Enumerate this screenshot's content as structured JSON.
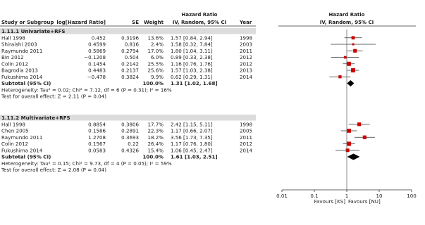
{
  "header": {
    "study": "Study or Subgroup",
    "loghr": "log[Hazard Ratio]",
    "se": "SE",
    "weight": "Weight",
    "hr_title": "Hazard Ratio",
    "hr_method": "IV, Random, 95% CI",
    "year": "Year",
    "plot_title": "Hazard Ratio",
    "plot_method": "IV, Random, 95% CI"
  },
  "chart_data": {
    "type": "forest",
    "x_scale": "log",
    "x_ticks": [
      "0.01",
      "0.1",
      "1",
      "10",
      "100"
    ],
    "x_tick_values": [
      0.01,
      0.1,
      1,
      10,
      100
    ],
    "xlabel_left": "Favours [KS]",
    "xlabel_right": "Favours [NU]",
    "marker_color": "#cc0000",
    "diamond_color": "#000000",
    "groups": [
      {
        "title": "1.11.1 Univariate+RFS",
        "studies": [
          {
            "name": "Hall 1998",
            "loghr": "0.452",
            "se": "0.3196",
            "weight": "13.6%",
            "ci_text": "1.57 [0.84, 2.94]",
            "year": "1998",
            "hr": 1.57,
            "lo": 0.84,
            "hi": 2.94,
            "w": 13.6
          },
          {
            "name": "Shiraishi 2003",
            "loghr": "0.4599",
            "se": "0.816",
            "weight": "2.4%",
            "ci_text": "1.58 [0.32, 7.84]",
            "year": "2003",
            "hr": 1.58,
            "lo": 0.32,
            "hi": 7.84,
            "w": 2.4
          },
          {
            "name": "Raymundo 2011",
            "loghr": "0.5869",
            "se": "0.2794",
            "weight": "17.0%",
            "ci_text": "1.80 [1.04, 3.11]",
            "year": "2011",
            "hr": 1.8,
            "lo": 1.04,
            "hi": 3.11,
            "w": 17.0
          },
          {
            "name": "Bin 2012",
            "loghr": "−0.1208",
            "se": "0.504",
            "weight": "6.0%",
            "ci_text": "0.89 [0.33, 2.38]",
            "year": "2012",
            "hr": 0.89,
            "lo": 0.33,
            "hi": 2.38,
            "w": 6.0
          },
          {
            "name": "Colin 2012",
            "loghr": "0.1454",
            "se": "0.2142",
            "weight": "25.5%",
            "ci_text": "1.16 [0.76, 1.76]",
            "year": "2012",
            "hr": 1.16,
            "lo": 0.76,
            "hi": 1.76,
            "w": 25.5
          },
          {
            "name": "Bagrodia 2013",
            "loghr": "0.4483",
            "se": "0.2137",
            "weight": "25.6%",
            "ci_text": "1.57 [1.03, 2.38]",
            "year": "2013",
            "hr": 1.57,
            "lo": 1.03,
            "hi": 2.38,
            "w": 25.6
          },
          {
            "name": "Fukushima 2014",
            "loghr": "−0.478",
            "se": "0.3824",
            "weight": "9.9%",
            "ci_text": "0.62 [0.29, 1.31]",
            "year": "2014",
            "hr": 0.62,
            "lo": 0.29,
            "hi": 1.31,
            "w": 9.9
          }
        ],
        "subtotal": {
          "label": "Subtotal (95% CI)",
          "weight": "100.0%",
          "ci_text": "1.31 [1.02, 1.68]",
          "hr": 1.31,
          "lo": 1.02,
          "hi": 1.68
        },
        "heterogeneity": "Heterogeneity: Tau² = 0.02; Chi² = 7.12, df = 6 (P = 0.31); I² = 16%",
        "overall_effect": "Test for overall effect: Z = 2.11 (P = 0.04)"
      },
      {
        "title": "1.11.2 Multivariate+RFS",
        "studies": [
          {
            "name": "Hall 1998",
            "loghr": "0.8854",
            "se": "0.3806",
            "weight": "17.7%",
            "ci_text": "2.42 [1.15, 5.11]",
            "year": "1998",
            "hr": 2.42,
            "lo": 1.15,
            "hi": 5.11,
            "w": 17.7
          },
          {
            "name": "Chen 2005",
            "loghr": "0.1586",
            "se": "0.2891",
            "weight": "22.3%",
            "ci_text": "1.17 [0.66, 2.07]",
            "year": "2005",
            "hr": 1.17,
            "lo": 0.66,
            "hi": 2.07,
            "w": 22.3
          },
          {
            "name": "Raymundo 2011",
            "loghr": "1.2708",
            "se": "0.3693",
            "weight": "18.2%",
            "ci_text": "3.56 [1.73, 7.35]",
            "year": "2011",
            "hr": 3.56,
            "lo": 1.73,
            "hi": 7.35,
            "w": 18.2
          },
          {
            "name": "Colin 2012",
            "loghr": "0.1567",
            "se": "0.22",
            "weight": "26.4%",
            "ci_text": "1.17 [0.76, 1.80]",
            "year": "2012",
            "hr": 1.17,
            "lo": 0.76,
            "hi": 1.8,
            "w": 26.4
          },
          {
            "name": "Fukushima 2014",
            "loghr": "0.0583",
            "se": "0.4326",
            "weight": "15.4%",
            "ci_text": "1.06 [0.45, 2.47]",
            "year": "2014",
            "hr": 1.06,
            "lo": 0.45,
            "hi": 2.47,
            "w": 15.4
          }
        ],
        "subtotal": {
          "label": "Subtotal (95% CI)",
          "weight": "100.0%",
          "ci_text": "1.61 [1.03, 2.51]",
          "hr": 1.61,
          "lo": 1.03,
          "hi": 2.51
        },
        "heterogeneity": "Heterogeneity: Tau² = 0.15; Chi² = 9.73, df = 4 (P = 0.05); I² = 59%",
        "overall_effect": "Test for overall effect: Z = 2.08 (P = 0.04)"
      }
    ]
  }
}
